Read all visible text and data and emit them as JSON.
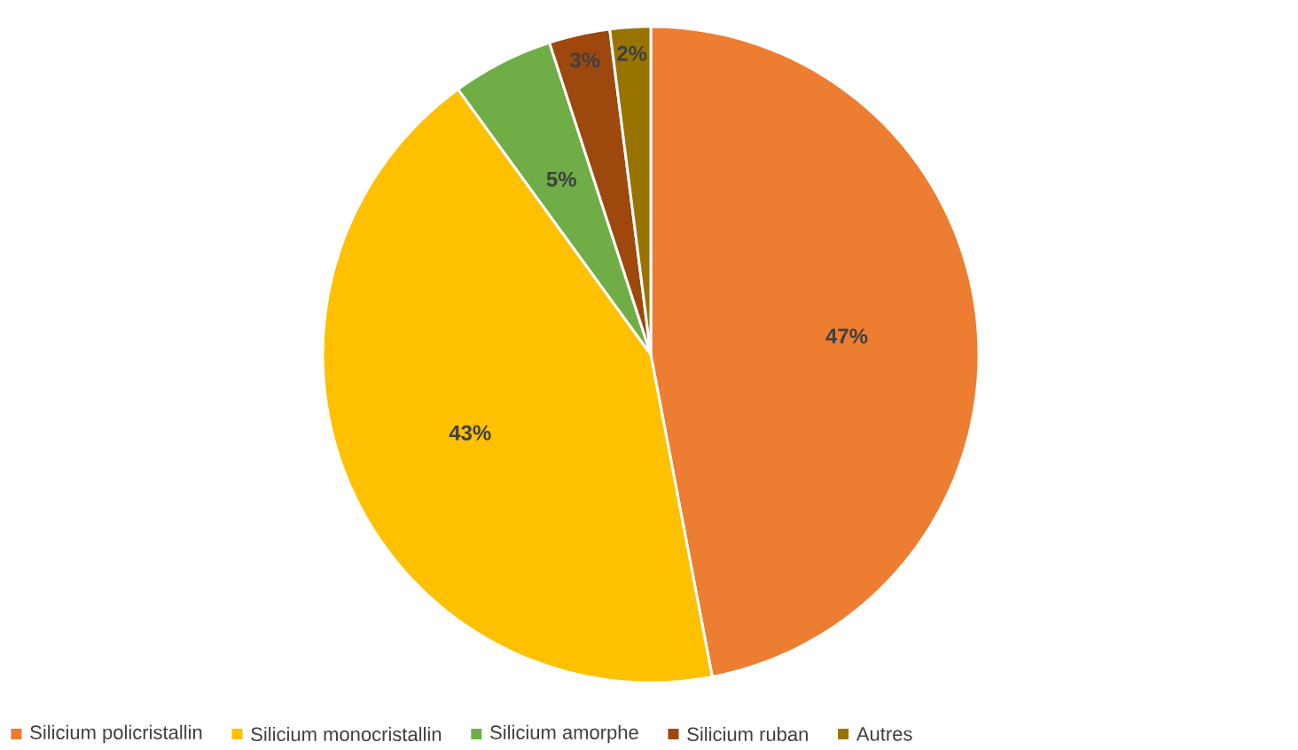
{
  "chart_data": {
    "type": "pie",
    "categories": [
      "Silicium policristallin",
      "Silicium monocristallin",
      "Silicium amorphe",
      "Silicium ruban",
      "Autres"
    ],
    "values": [
      47,
      43,
      5,
      3,
      2
    ],
    "colors": [
      "#ed7d31",
      "#ffc000",
      "#70ad47",
      "#9e480e",
      "#997300"
    ],
    "value_labels": [
      "47%",
      "43%",
      "5%",
      "3%",
      "2%"
    ],
    "legend": "bottom"
  }
}
